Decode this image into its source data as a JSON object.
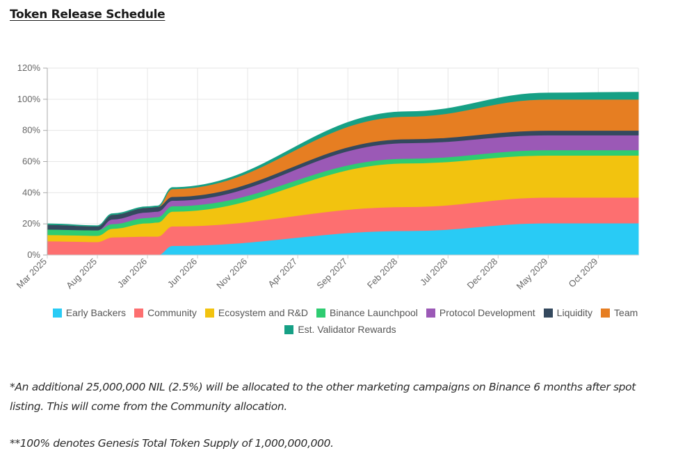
{
  "page": {
    "title": "Token Release Schedule",
    "notes": [
      "*An additional 25,000,000 NIL (2.5%) will be allocated to the other marketing campaigns on Binance 6 months after spot listing. This will come from the Community allocation.",
      "**100% denotes Genesis Total Token Supply of 1,000,000,000."
    ]
  },
  "chart_data": {
    "type": "area",
    "stacked": true,
    "title": "Token Release Schedule",
    "xlabel": "",
    "ylabel": "",
    "ylim": [
      0,
      120
    ],
    "yticks": [
      0,
      20,
      40,
      60,
      80,
      100,
      120
    ],
    "ytick_labels": [
      "0%",
      "20%",
      "40%",
      "60%",
      "80%",
      "100%",
      "120%"
    ],
    "x_unit": "months since Mar 2025",
    "xlim": [
      0,
      59
    ],
    "xticks": [
      0,
      5,
      10,
      15,
      20,
      25,
      30,
      35,
      40,
      45,
      50,
      55
    ],
    "xtick_labels": [
      "Mar 2025",
      "Aug 2025",
      "Jan 2026",
      "Jun 2026",
      "Nov 2026",
      "Apr 2027",
      "Sep 2027",
      "Feb 2028",
      "Jul 2028",
      "Dec 2028",
      "May 2029",
      "Oct 2029"
    ],
    "grid": true,
    "legend_position": "bottom",
    "x": [
      0,
      5,
      6.5,
      10,
      11,
      12.5,
      36,
      50,
      59
    ],
    "series": [
      {
        "name": "Early Backers",
        "color": "#29cbf5",
        "values": [
          0,
          0,
          0,
          0,
          0,
          6,
          15.6,
          20.5,
          20.5
        ]
      },
      {
        "name": "Community",
        "color": "#fd6f70",
        "values": [
          9,
          8.5,
          11.5,
          12,
          12,
          12.5,
          15.4,
          16.5,
          16.5
        ]
      },
      {
        "name": "Ecosystem and R&D",
        "color": "#f2c30f",
        "values": [
          4,
          4,
          5.5,
          8.5,
          9,
          9.5,
          28,
          27,
          27
        ]
      },
      {
        "name": "Binance Launchpool",
        "color": "#2ecc71",
        "values": [
          3.5,
          3.5,
          3,
          3.5,
          3.5,
          3.5,
          3,
          3.5,
          3.5
        ]
      },
      {
        "name": "Protocol Development",
        "color": "#9b59b6",
        "values": [
          0,
          0,
          3,
          3.5,
          3.5,
          3.5,
          10,
          9.5,
          9.5
        ]
      },
      {
        "name": "Liquidity",
        "color": "#34495e",
        "values": [
          3,
          2.5,
          3,
          3,
          3,
          2.5,
          2.5,
          3,
          3
        ]
      },
      {
        "name": "Team",
        "color": "#e67e22",
        "values": [
          0,
          0,
          0,
          0,
          0,
          5,
          14.5,
          20,
          20
        ]
      },
      {
        "name": "Est. Validator Rewards",
        "color": "#16a085",
        "values": [
          0.5,
          0.3,
          0.5,
          0.5,
          0.5,
          0.8,
          3,
          4,
          4.5
        ]
      }
    ]
  }
}
